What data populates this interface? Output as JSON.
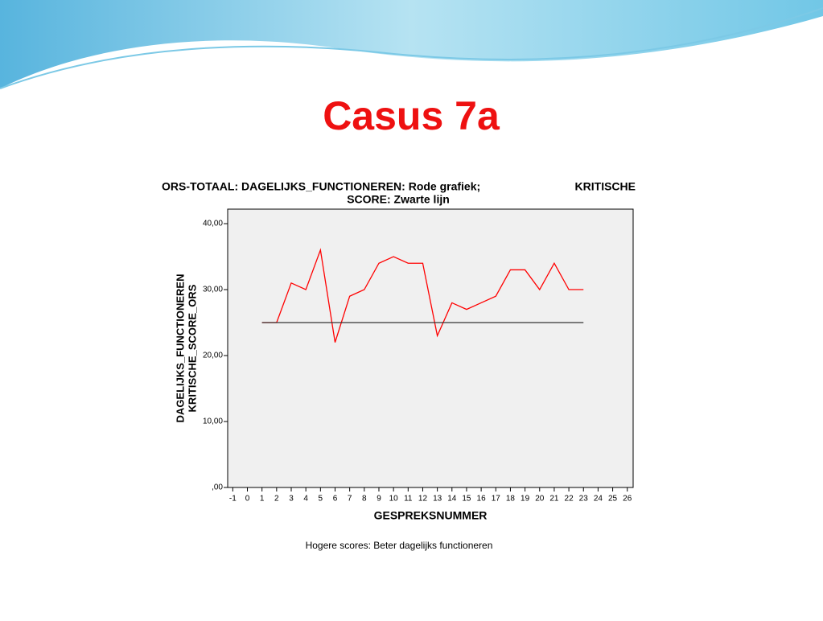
{
  "slide_title": "Casus 7a",
  "chart_data": {
    "type": "line",
    "title": [
      "ORS-TOTAAL: DAGELIJKS_FUNCTIONEREN: Rode grafiek;",
      "KRITISCHE",
      "SCORE: Zwarte lijn"
    ],
    "y_label": [
      "DAGELIJKS_FUNCTIONEREN",
      "KRITISCHE_SCORE_ORS"
    ],
    "x_label": "GESPREKSNUMMER",
    "note": "Hogere scores: Beter dagelijks functioneren",
    "x": [
      1,
      2,
      3,
      4,
      5,
      6,
      7,
      8,
      9,
      10,
      11,
      12,
      13,
      14,
      15,
      16,
      17,
      18,
      19,
      20,
      21,
      22,
      23
    ],
    "series": [
      {
        "color": "#ff0000",
        "values": [
          25,
          25,
          31,
          30,
          36,
          22,
          29,
          30,
          34,
          35,
          34,
          34,
          23,
          28,
          27,
          28,
          29,
          33,
          33,
          30,
          34,
          30,
          30
        ]
      },
      {
        "color": "#333333",
        "values": [
          25,
          25,
          25,
          25,
          25,
          25,
          25,
          25,
          25,
          25,
          25,
          25,
          25,
          25,
          25,
          25,
          25,
          25,
          25,
          25,
          25,
          25,
          25
        ]
      }
    ],
    "xlim": [
      -1.35,
      26.4
    ],
    "xticks": [
      -1,
      0,
      1,
      2,
      3,
      4,
      5,
      6,
      7,
      8,
      9,
      10,
      11,
      12,
      13,
      14,
      15,
      16,
      17,
      18,
      19,
      20,
      21,
      22,
      23,
      24,
      25,
      26
    ],
    "ylim": [
      0,
      42.2
    ],
    "yticks": [
      {
        "value": 0,
        "label": ",00"
      },
      {
        "value": 10,
        "label": "10,00"
      },
      {
        "value": 20,
        "label": "20,00"
      },
      {
        "value": 30,
        "label": "30,00"
      },
      {
        "value": 40,
        "label": "40,00"
      }
    ],
    "plot_background": "#f0f0f0"
  }
}
